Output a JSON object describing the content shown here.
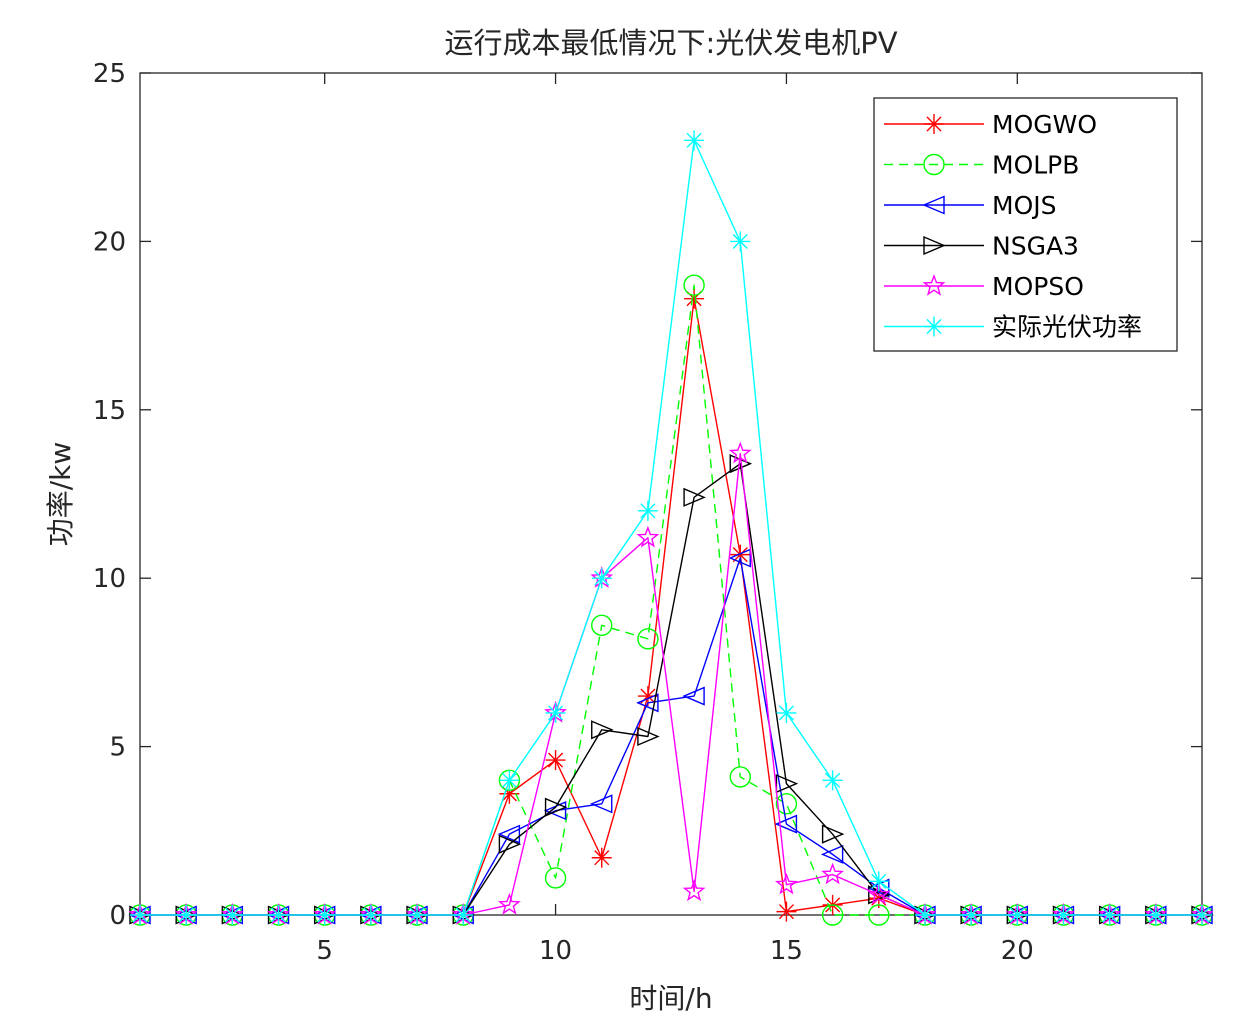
{
  "chart_data": {
    "type": "line",
    "title": "运行成本最低情况下:光伏发电机PV",
    "xlabel": "时间/h",
    "ylabel": "功率/kw",
    "xlim": [
      1,
      24
    ],
    "ylim": [
      0,
      25
    ],
    "xticks": [
      5,
      10,
      15,
      20
    ],
    "yticks": [
      0,
      5,
      10,
      15,
      20,
      25
    ],
    "grid": false,
    "legend_position": "top-right",
    "x": [
      1,
      2,
      3,
      4,
      5,
      6,
      7,
      8,
      9,
      10,
      11,
      12,
      13,
      14,
      15,
      16,
      17,
      18,
      19,
      20,
      21,
      22,
      23,
      24
    ],
    "series": [
      {
        "name": "MOGWO",
        "color": "#ff0000",
        "line_style": "solid",
        "marker": "asterisk",
        "values": [
          0,
          0,
          0,
          0,
          0,
          0,
          0,
          0,
          3.6,
          4.6,
          1.7,
          6.5,
          18.3,
          10.7,
          0.1,
          0.3,
          0.5,
          0,
          0,
          0,
          0,
          0,
          0,
          0
        ]
      },
      {
        "name": "MOLPB",
        "color": "#00ff00",
        "line_style": "dashed",
        "marker": "circle",
        "values": [
          0,
          0,
          0,
          0,
          0,
          0,
          0,
          0,
          4.0,
          1.1,
          8.6,
          8.2,
          18.7,
          4.1,
          3.3,
          0,
          0,
          0,
          0,
          0,
          0,
          0,
          0,
          0
        ]
      },
      {
        "name": "MOJS",
        "color": "#0000ff",
        "line_style": "solid",
        "marker": "triangle-left",
        "values": [
          0,
          0,
          0,
          0,
          0,
          0,
          0,
          0,
          2.4,
          3.1,
          3.3,
          6.3,
          6.5,
          10.6,
          2.7,
          1.8,
          0.8,
          0,
          0,
          0,
          0,
          0,
          0,
          0
        ]
      },
      {
        "name": "NSGA3",
        "color": "#000000",
        "line_style": "solid",
        "marker": "triangle-right",
        "values": [
          0,
          0,
          0,
          0,
          0,
          0,
          0,
          0,
          2.1,
          3.2,
          5.5,
          5.3,
          12.4,
          13.4,
          3.9,
          2.4,
          0.6,
          0,
          0,
          0,
          0,
          0,
          0,
          0
        ]
      },
      {
        "name": "MOPSO",
        "color": "#ff00ff",
        "line_style": "solid",
        "marker": "pentagram",
        "values": [
          0,
          0,
          0,
          0,
          0,
          0,
          0,
          0,
          0.3,
          6.0,
          10.0,
          11.2,
          0.7,
          13.7,
          0.9,
          1.2,
          0.6,
          0,
          0,
          0,
          0,
          0,
          0,
          0
        ]
      },
      {
        "name": "实际光伏功率",
        "color": "#00ffff",
        "line_style": "solid",
        "marker": "asterisk",
        "values": [
          0,
          0,
          0,
          0,
          0,
          0,
          0,
          0,
          4.0,
          6.0,
          10.0,
          12.0,
          23.0,
          20.0,
          6.0,
          4.0,
          1.0,
          0,
          0,
          0,
          0,
          0,
          0,
          0
        ]
      }
    ]
  }
}
